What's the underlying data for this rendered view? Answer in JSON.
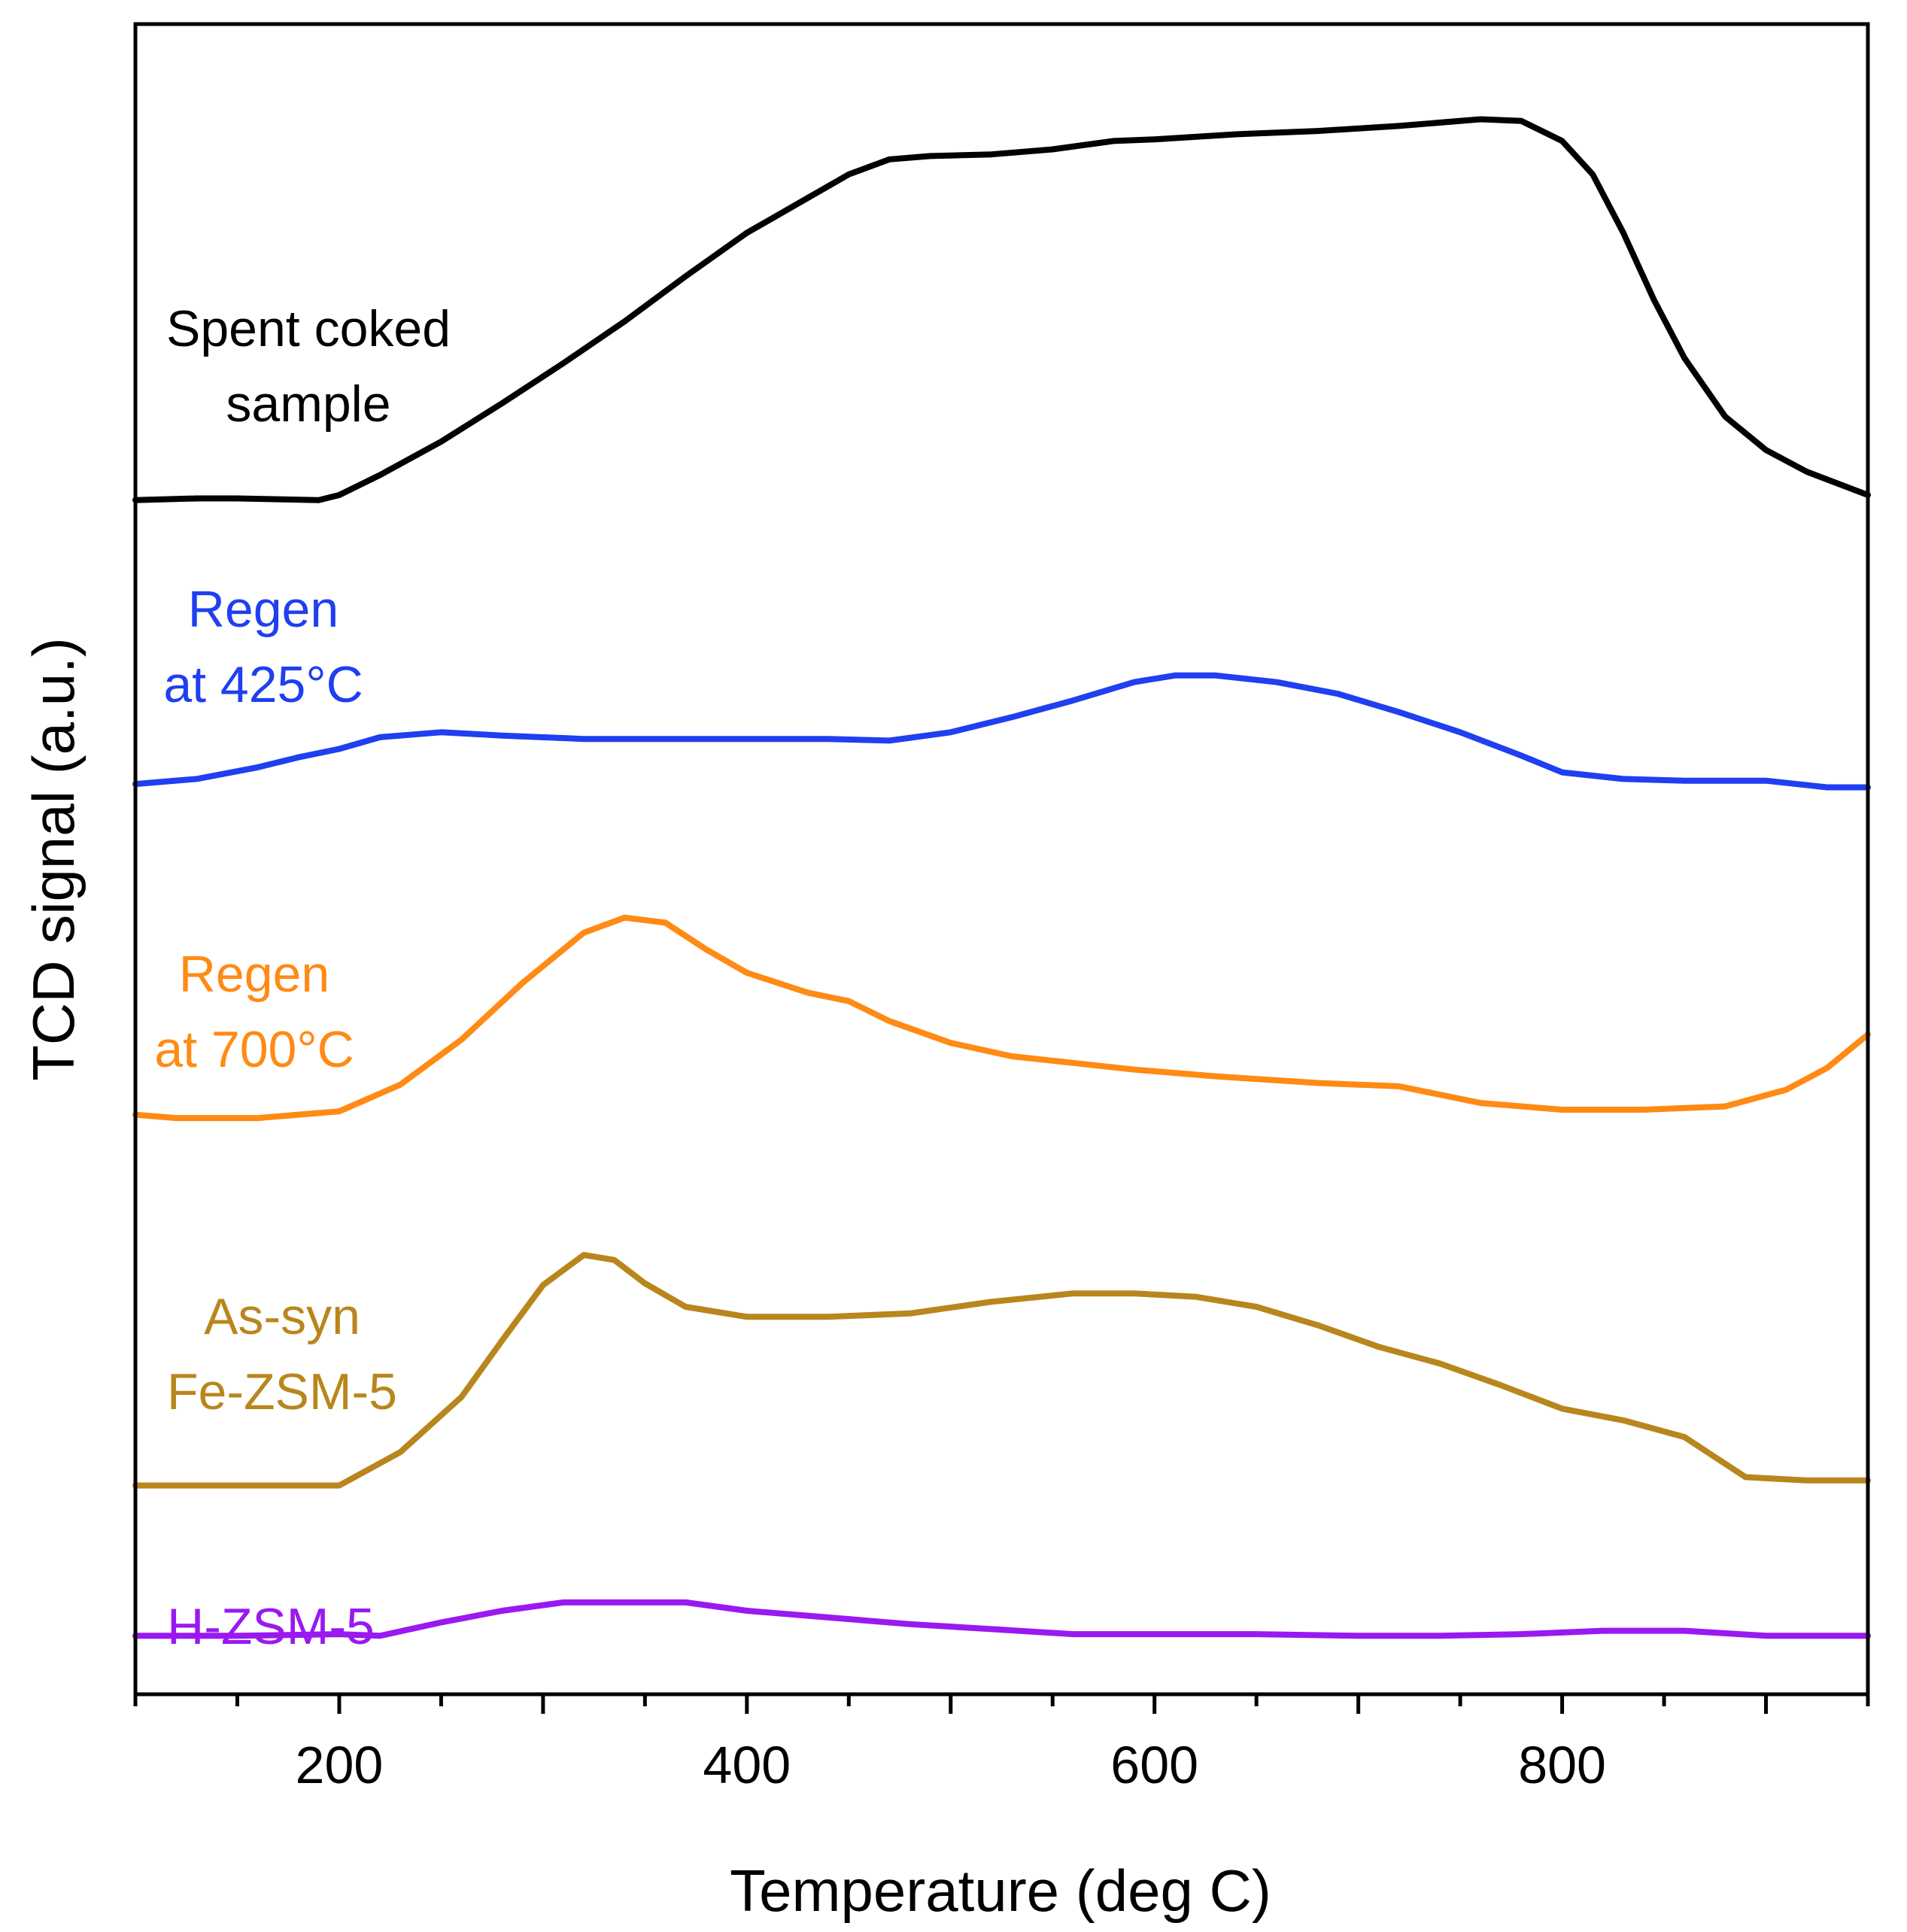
{
  "chart_data": {
    "type": "line",
    "title": "",
    "xlabel": "Temperature (deg C)",
    "ylabel": "TCD signal (a.u.)",
    "xlim": [
      100,
      950
    ],
    "ylim": [
      0,
      100
    ],
    "x_ticks_major": [
      200,
      400,
      600,
      800
    ],
    "x_ticks_minor": [
      300,
      500,
      700,
      900
    ],
    "y_tick_labels": false,
    "series": [
      {
        "name": "Spent coked sample",
        "label_lines": [
          "Spent coked",
          "sample"
        ],
        "color": "#000000",
        "points": [
          [
            100,
            71.5
          ],
          [
            130,
            71.6
          ],
          [
            150,
            71.6
          ],
          [
            190,
            71.5
          ],
          [
            200,
            71.8
          ],
          [
            220,
            73.0
          ],
          [
            250,
            75.0
          ],
          [
            280,
            77.3
          ],
          [
            310,
            79.7
          ],
          [
            340,
            82.2
          ],
          [
            370,
            84.9
          ],
          [
            400,
            87.5
          ],
          [
            430,
            89.6
          ],
          [
            450,
            91.0
          ],
          [
            470,
            91.9
          ],
          [
            490,
            92.1
          ],
          [
            520,
            92.2
          ],
          [
            550,
            92.5
          ],
          [
            580,
            93.0
          ],
          [
            600,
            93.1
          ],
          [
            640,
            93.4
          ],
          [
            680,
            93.6
          ],
          [
            720,
            93.9
          ],
          [
            760,
            94.3
          ],
          [
            780,
            94.2
          ],
          [
            800,
            93.0
          ],
          [
            815,
            91.0
          ],
          [
            830,
            87.5
          ],
          [
            845,
            83.5
          ],
          [
            860,
            80.0
          ],
          [
            880,
            76.5
          ],
          [
            900,
            74.5
          ],
          [
            920,
            73.2
          ],
          [
            935,
            72.5
          ],
          [
            950,
            71.8
          ]
        ]
      },
      {
        "name": "Regen at 425°C",
        "label_lines": [
          "Regen",
          "at 425°C"
        ],
        "color": "#1f3ff0",
        "points": [
          [
            100,
            54.5
          ],
          [
            130,
            54.8
          ],
          [
            160,
            55.5
          ],
          [
            180,
            56.1
          ],
          [
            200,
            56.6
          ],
          [
            220,
            57.3
          ],
          [
            250,
            57.6
          ],
          [
            280,
            57.4
          ],
          [
            320,
            57.2
          ],
          [
            360,
            57.2
          ],
          [
            400,
            57.2
          ],
          [
            440,
            57.2
          ],
          [
            470,
            57.1
          ],
          [
            500,
            57.6
          ],
          [
            530,
            58.5
          ],
          [
            560,
            59.5
          ],
          [
            590,
            60.6
          ],
          [
            610,
            61.0
          ],
          [
            630,
            61.0
          ],
          [
            660,
            60.6
          ],
          [
            690,
            59.9
          ],
          [
            720,
            58.8
          ],
          [
            750,
            57.6
          ],
          [
            780,
            56.2
          ],
          [
            800,
            55.2
          ],
          [
            830,
            54.8
          ],
          [
            860,
            54.7
          ],
          [
            900,
            54.7
          ],
          [
            930,
            54.3
          ],
          [
            950,
            54.3
          ]
        ]
      },
      {
        "name": "Regen at 700°C",
        "label_lines": [
          "Regen",
          "at 700°C"
        ],
        "color": "#ff8a14",
        "points": [
          [
            100,
            34.7
          ],
          [
            120,
            34.5
          ],
          [
            160,
            34.5
          ],
          [
            200,
            34.9
          ],
          [
            230,
            36.5
          ],
          [
            260,
            39.2
          ],
          [
            290,
            42.6
          ],
          [
            320,
            45.6
          ],
          [
            340,
            46.5
          ],
          [
            360,
            46.2
          ],
          [
            380,
            44.6
          ],
          [
            400,
            43.2
          ],
          [
            430,
            42.0
          ],
          [
            450,
            41.5
          ],
          [
            470,
            40.3
          ],
          [
            500,
            39.0
          ],
          [
            530,
            38.2
          ],
          [
            560,
            37.8
          ],
          [
            590,
            37.4
          ],
          [
            630,
            37.0
          ],
          [
            680,
            36.6
          ],
          [
            720,
            36.4
          ],
          [
            760,
            35.4
          ],
          [
            800,
            35.0
          ],
          [
            840,
            35.0
          ],
          [
            880,
            35.2
          ],
          [
            910,
            36.2
          ],
          [
            930,
            37.5
          ],
          [
            950,
            39.5
          ]
        ]
      },
      {
        "name": "As-syn Fe-ZSM-5",
        "label_lines": [
          "As-syn",
          "Fe-ZSM-5"
        ],
        "color": "#b8861c",
        "points": [
          [
            100,
            12.5
          ],
          [
            150,
            12.5
          ],
          [
            200,
            12.5
          ],
          [
            230,
            14.5
          ],
          [
            260,
            17.8
          ],
          [
            280,
            21.2
          ],
          [
            300,
            24.5
          ],
          [
            320,
            26.3
          ],
          [
            335,
            26.0
          ],
          [
            350,
            24.6
          ],
          [
            370,
            23.2
          ],
          [
            400,
            22.6
          ],
          [
            440,
            22.6
          ],
          [
            480,
            22.8
          ],
          [
            520,
            23.5
          ],
          [
            560,
            24.0
          ],
          [
            590,
            24.0
          ],
          [
            620,
            23.8
          ],
          [
            650,
            23.2
          ],
          [
            680,
            22.1
          ],
          [
            710,
            20.8
          ],
          [
            740,
            19.8
          ],
          [
            770,
            18.5
          ],
          [
            800,
            17.1
          ],
          [
            830,
            16.4
          ],
          [
            860,
            15.4
          ],
          [
            890,
            13.0
          ],
          [
            920,
            12.8
          ],
          [
            950,
            12.8
          ]
        ]
      },
      {
        "name": "H-ZSM-5",
        "label_lines": [
          "H-ZSM-5"
        ],
        "color": "#9a19f0",
        "points": [
          [
            100,
            3.5
          ],
          [
            150,
            3.5
          ],
          [
            200,
            3.6
          ],
          [
            220,
            3.5
          ],
          [
            250,
            4.3
          ],
          [
            280,
            5.0
          ],
          [
            310,
            5.5
          ],
          [
            340,
            5.5
          ],
          [
            370,
            5.5
          ],
          [
            400,
            5.0
          ],
          [
            440,
            4.6
          ],
          [
            480,
            4.2
          ],
          [
            520,
            3.9
          ],
          [
            560,
            3.6
          ],
          [
            600,
            3.6
          ],
          [
            650,
            3.6
          ],
          [
            700,
            3.5
          ],
          [
            740,
            3.5
          ],
          [
            780,
            3.6
          ],
          [
            820,
            3.8
          ],
          [
            860,
            3.8
          ],
          [
            900,
            3.5
          ],
          [
            950,
            3.5
          ]
        ]
      }
    ]
  }
}
